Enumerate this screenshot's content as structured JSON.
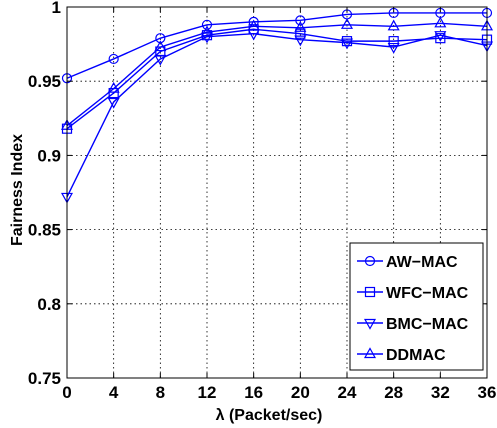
{
  "chart_data": {
    "type": "line",
    "title": "",
    "xlabel": "λ (Packet/sec)",
    "ylabel": "Fairness Index",
    "x": [
      0,
      4,
      8,
      12,
      16,
      20,
      24,
      28,
      32,
      36
    ],
    "xlim": [
      0,
      36
    ],
    "ylim": [
      0.75,
      1.0
    ],
    "xticks": [
      "0",
      "4",
      "8",
      "12",
      "16",
      "20",
      "24",
      "28",
      "32",
      "36"
    ],
    "yticks": [
      "0.75",
      "0.8",
      "0.85",
      "0.9",
      "0.95",
      "1"
    ],
    "grid": true,
    "legend_position": "bottom-right",
    "line_color": "#0000ff",
    "series": [
      {
        "name": "AW−MAC",
        "marker": "circle",
        "values": [
          0.952,
          0.965,
          0.979,
          0.988,
          0.99,
          0.991,
          0.995,
          0.996,
          0.996,
          0.996
        ]
      },
      {
        "name": "WFC−MAC",
        "marker": "square",
        "values": [
          0.918,
          0.942,
          0.97,
          0.981,
          0.985,
          0.982,
          0.977,
          0.977,
          0.979,
          0.978
        ]
      },
      {
        "name": "BMC−MAC",
        "marker": "triangle-down",
        "values": [
          0.872,
          0.936,
          0.965,
          0.98,
          0.982,
          0.978,
          0.976,
          0.973,
          0.981,
          0.974
        ]
      },
      {
        "name": "DDMAC",
        "marker": "triangle-up",
        "values": [
          0.92,
          0.945,
          0.973,
          0.983,
          0.987,
          0.986,
          0.988,
          0.987,
          0.989,
          0.987
        ]
      }
    ]
  }
}
